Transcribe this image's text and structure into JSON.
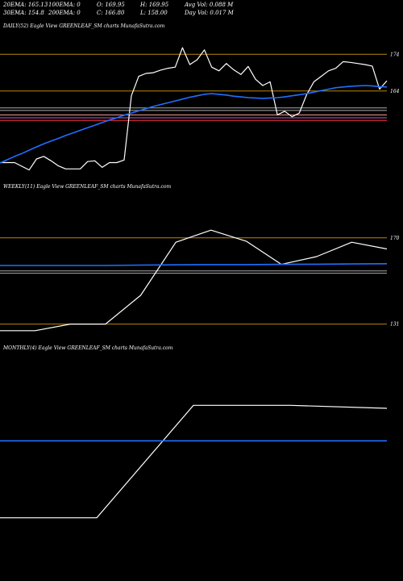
{
  "header": {
    "row1": [
      "20EMA: 165.13",
      "100EMA: 0",
      "O: 169.95",
      "H: 169.95",
      "Avg Vol: 0.088  M"
    ],
    "row2": [
      "30EMA: 154.8",
      "200EMA: 0",
      "C: 166.80",
      "L: 158.00",
      "Day Vol: 0.017 M"
    ]
  },
  "chart_data": [
    {
      "type": "line",
      "title": "DAILY(52) Eagle  View  GREENLEAF_SM charts MunafaSutra.com",
      "ylim": [
        140,
        180
      ],
      "yticks": [
        {
          "label": "174",
          "value": 174
        },
        {
          "label": "164",
          "value": 164
        }
      ],
      "hlines": [
        {
          "value": 174,
          "color": "#b8860b"
        },
        {
          "value": 164,
          "color": "#b8860b"
        },
        {
          "value": 159.4,
          "color": "#aaaaaa"
        },
        {
          "value": 158.7,
          "color": "#aaaaaa"
        },
        {
          "value": 157.5,
          "color": "#ff9999"
        },
        {
          "value": 156.7,
          "color": "#cc55cc"
        },
        {
          "value": 156.0,
          "color": "#ff3333"
        }
      ],
      "series": [
        {
          "color": "#ffffff",
          "values": [
            144.5,
            144.5,
            144.5,
            143.5,
            142.5,
            145.5,
            146.2,
            145.0,
            143.6,
            142.8,
            142.8,
            142.8,
            144.8,
            145.0,
            143.2,
            144.5,
            144.5,
            145.2,
            162.7,
            168.0,
            168.8,
            169.0,
            169.7,
            170.2,
            170.5,
            175.8,
            171.2,
            172.5,
            175.2,
            170.5,
            169.5,
            171.5,
            169.8,
            168.5,
            170.7,
            167.2,
            165.5,
            166.5,
            157.5,
            158.5,
            157.0,
            158.0,
            163.0,
            166.5,
            168.0,
            169.5,
            170.2,
            172.0,
            171.8,
            171.5,
            171.2,
            170.8,
            164.5,
            166.8
          ]
        },
        {
          "color": "#1f6fff",
          "values": [
            144.4,
            145.3,
            146.2,
            147.0,
            147.9,
            148.8,
            149.6,
            150.4,
            151.1,
            151.9,
            152.6,
            153.3,
            154.0,
            154.7,
            155.4,
            156.1,
            156.7,
            157.4,
            158.0,
            158.6,
            159.2,
            159.8,
            160.3,
            160.8,
            161.3,
            161.8,
            162.3,
            162.7,
            163.1,
            163.3,
            163.1,
            162.9,
            162.6,
            162.4,
            162.2,
            162.1,
            162.0,
            162.1,
            162.2,
            162.4,
            162.7,
            163.0,
            163.3,
            163.7,
            164.1,
            164.5,
            164.9,
            165.1,
            165.3,
            165.4,
            165.5,
            165.4,
            165.2,
            165.1
          ]
        }
      ]
    },
    {
      "type": "line",
      "title": "WEEKLY(11) Eagle  View  GREENLEAF_SM charts MunafaSutra.com",
      "ylim": [
        125,
        190
      ],
      "yticks": [
        {
          "label": "170",
          "value": 170
        },
        {
          "label": "131",
          "value": 131
        }
      ],
      "hlines": [
        {
          "value": 170,
          "color": "#b8860b"
        },
        {
          "value": 131,
          "color": "#b8860b"
        },
        {
          "value": 155.0,
          "color": "#aaaaaa"
        },
        {
          "value": 154.0,
          "color": "#aaaaaa"
        }
      ],
      "series": [
        {
          "color": "#ffffff",
          "values": [
            128,
            128,
            131,
            131,
            144,
            168,
            173.5,
            168.5,
            158,
            161.5,
            168,
            165
          ]
        },
        {
          "color": "#1f6fff",
          "values": [
            157.5,
            157.5,
            157.5,
            157.5,
            157.7,
            157.8,
            157.9,
            157.9,
            158.0,
            158.1,
            158.2,
            158.3
          ]
        }
      ]
    },
    {
      "type": "line",
      "title": "MONTHLY(4) Eagle  View  GREENLEAF_SM charts MunafaSutra.com",
      "ylim": [
        125,
        185
      ],
      "yticks": [],
      "hlines": [],
      "series": [
        {
          "color": "#ffffff",
          "values": [
            130,
            130,
            168,
            168,
            167
          ]
        },
        {
          "color": "#1f6fff",
          "values": [
            156,
            156,
            156,
            156,
            156
          ]
        }
      ]
    }
  ]
}
